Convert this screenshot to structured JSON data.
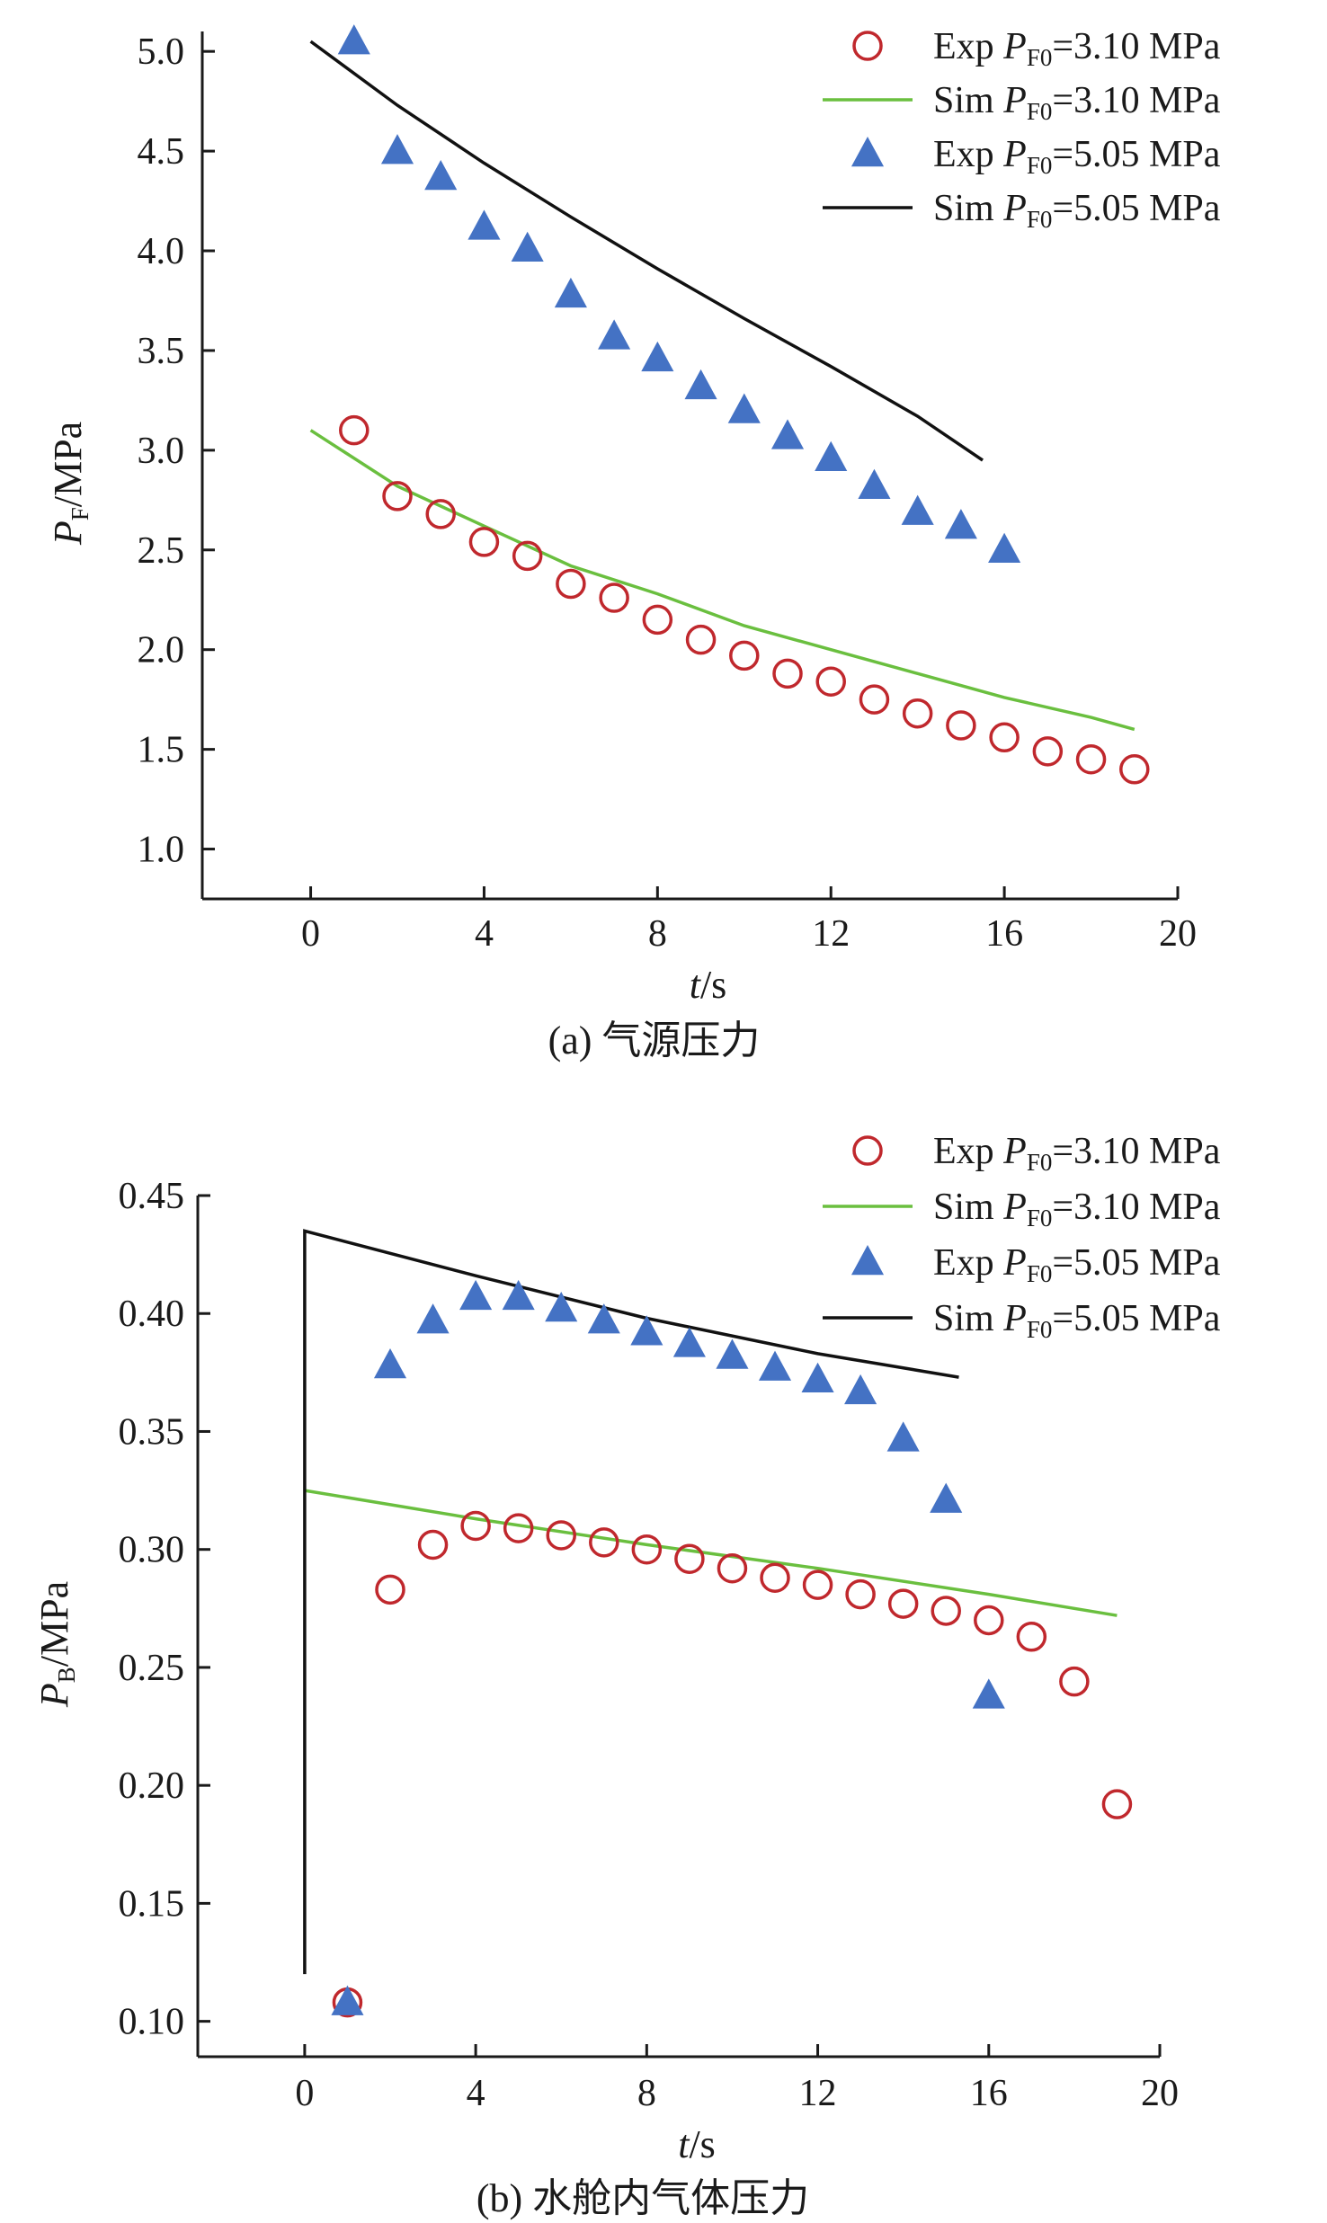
{
  "chart_data": [
    {
      "type": "scatter",
      "caption": "(a) 气源压力",
      "xlabel": {
        "italic": "t",
        "rest": "/s"
      },
      "ylabel": {
        "main": "P",
        "sub": "F",
        "rest": "/MPa"
      },
      "xlim": [
        -2.5,
        20
      ],
      "ylim": [
        0.75,
        5.1
      ],
      "xticks": [
        0,
        4,
        8,
        12,
        16,
        20
      ],
      "xtick_labels": [
        "0",
        "4",
        "8",
        "12",
        "16",
        "20"
      ],
      "yticks": [
        1.0,
        1.5,
        2.0,
        2.5,
        3.0,
        3.5,
        4.0,
        4.5,
        5.0
      ],
      "ytick_labels": [
        "1.0",
        "1.5",
        "2.0",
        "2.5",
        "3.0",
        "3.5",
        "4.0",
        "4.5",
        "5.0"
      ],
      "grid": false,
      "legend_position": "top-right",
      "series": [
        {
          "name": "Exp PF0=3.10 MPa",
          "legend": {
            "prefix": "Exp ",
            "main": "P",
            "sub": "F0",
            "suffix": "=3.10 MPa"
          },
          "kind": "circle",
          "color": "#c0282d",
          "x": [
            1,
            2,
            3,
            4,
            5,
            6,
            7,
            8,
            9,
            10,
            11,
            12,
            13,
            14,
            15,
            16,
            17,
            18,
            19
          ],
          "y": [
            3.1,
            2.77,
            2.68,
            2.54,
            2.47,
            2.33,
            2.26,
            2.15,
            2.05,
            1.97,
            1.88,
            1.84,
            1.75,
            1.68,
            1.62,
            1.56,
            1.49,
            1.45,
            1.4
          ]
        },
        {
          "name": "Sim PF0=3.10 MPa",
          "legend": {
            "prefix": "Sim ",
            "main": "P",
            "sub": "F0",
            "suffix": "=3.10 MPa"
          },
          "kind": "line",
          "color": "#6abf3f",
          "x": [
            0,
            2,
            4,
            6,
            8,
            10,
            12,
            14,
            16,
            18,
            19
          ],
          "y": [
            3.1,
            2.82,
            2.62,
            2.42,
            2.28,
            2.12,
            2.0,
            1.88,
            1.76,
            1.66,
            1.6
          ]
        },
        {
          "name": "Exp PF0=5.05 MPa",
          "legend": {
            "prefix": "Exp ",
            "main": "P",
            "sub": "F0",
            "suffix": "=5.05 MPa"
          },
          "kind": "triangle",
          "color": "#4472c4",
          "x": [
            1,
            2,
            3,
            4,
            5,
            6,
            7,
            8,
            9,
            10,
            11,
            12,
            13,
            14,
            15,
            16
          ],
          "y": [
            5.05,
            4.5,
            4.37,
            4.12,
            4.01,
            3.78,
            3.57,
            3.46,
            3.32,
            3.2,
            3.07,
            2.96,
            2.82,
            2.69,
            2.62,
            2.5
          ]
        },
        {
          "name": "Sim PF0=5.05 MPa",
          "legend": {
            "prefix": "Sim ",
            "main": "P",
            "sub": "F0",
            "suffix": "=5.05 MPa"
          },
          "kind": "line",
          "color": "#111111",
          "x": [
            0,
            2,
            4,
            6,
            8,
            10,
            12,
            14,
            15.5
          ],
          "y": [
            5.05,
            4.73,
            4.44,
            4.17,
            3.91,
            3.66,
            3.42,
            3.17,
            2.95
          ]
        }
      ]
    },
    {
      "type": "scatter",
      "caption": "(b) 水舱内气体压力",
      "xlabel": {
        "italic": "t",
        "rest": "/s"
      },
      "ylabel": {
        "main": "P",
        "sub": "B",
        "rest": "/MPa"
      },
      "xlim": [
        -2.5,
        20
      ],
      "ylim": [
        0.085,
        0.45
      ],
      "xticks": [
        0,
        4,
        8,
        12,
        16,
        20
      ],
      "xtick_labels": [
        "0",
        "4",
        "8",
        "12",
        "16",
        "20"
      ],
      "yticks": [
        0.1,
        0.15,
        0.2,
        0.25,
        0.3,
        0.35,
        0.4,
        0.45
      ],
      "ytick_labels": [
        "0.10",
        "0.15",
        "0.20",
        "0.25",
        "0.30",
        "0.35",
        "0.40",
        "0.45"
      ],
      "grid": false,
      "legend_position": "top-right",
      "series": [
        {
          "name": "Exp PF0=3.10 MPa",
          "legend": {
            "prefix": "Exp ",
            "main": "P",
            "sub": "F0",
            "suffix": "=3.10 MPa"
          },
          "kind": "circle",
          "color": "#c0282d",
          "x": [
            1,
            2,
            3,
            4,
            5,
            6,
            7,
            8,
            9,
            10,
            11,
            12,
            13,
            14,
            15,
            16,
            17,
            18,
            19
          ],
          "y": [
            0.108,
            0.283,
            0.302,
            0.31,
            0.309,
            0.306,
            0.303,
            0.3,
            0.296,
            0.292,
            0.288,
            0.285,
            0.281,
            0.277,
            0.274,
            0.27,
            0.263,
            0.244,
            0.192
          ]
        },
        {
          "name": "Sim PF0=3.10 MPa",
          "legend": {
            "prefix": "Sim ",
            "main": "P",
            "sub": "F0",
            "suffix": "=3.10 MPa"
          },
          "kind": "line",
          "color": "#6abf3f",
          "x": [
            0,
            4,
            8,
            12,
            16,
            19
          ],
          "y": [
            0.325,
            0.313,
            0.302,
            0.292,
            0.281,
            0.272
          ]
        },
        {
          "name": "Exp PF0=5.05 MPa",
          "legend": {
            "prefix": "Exp ",
            "main": "P",
            "sub": "F0",
            "suffix": "=5.05 MPa"
          },
          "kind": "triangle",
          "color": "#4472c4",
          "x": [
            1,
            2,
            3,
            4,
            5,
            6,
            7,
            8,
            9,
            10,
            11,
            12,
            13,
            14,
            15,
            16
          ],
          "y": [
            0.108,
            0.378,
            0.397,
            0.407,
            0.407,
            0.402,
            0.397,
            0.392,
            0.387,
            0.382,
            0.377,
            0.372,
            0.367,
            0.347,
            0.321,
            0.238
          ]
        },
        {
          "name": "Sim PF0=5.05 MPa",
          "legend": {
            "prefix": "Sim ",
            "main": "P",
            "sub": "F0",
            "suffix": "=5.05 MPa"
          },
          "kind": "line",
          "color": "#111111",
          "x": [
            0,
            0,
            4,
            8,
            12,
            15.3
          ],
          "y": [
            0.12,
            0.435,
            0.416,
            0.398,
            0.383,
            0.373
          ]
        }
      ]
    }
  ]
}
